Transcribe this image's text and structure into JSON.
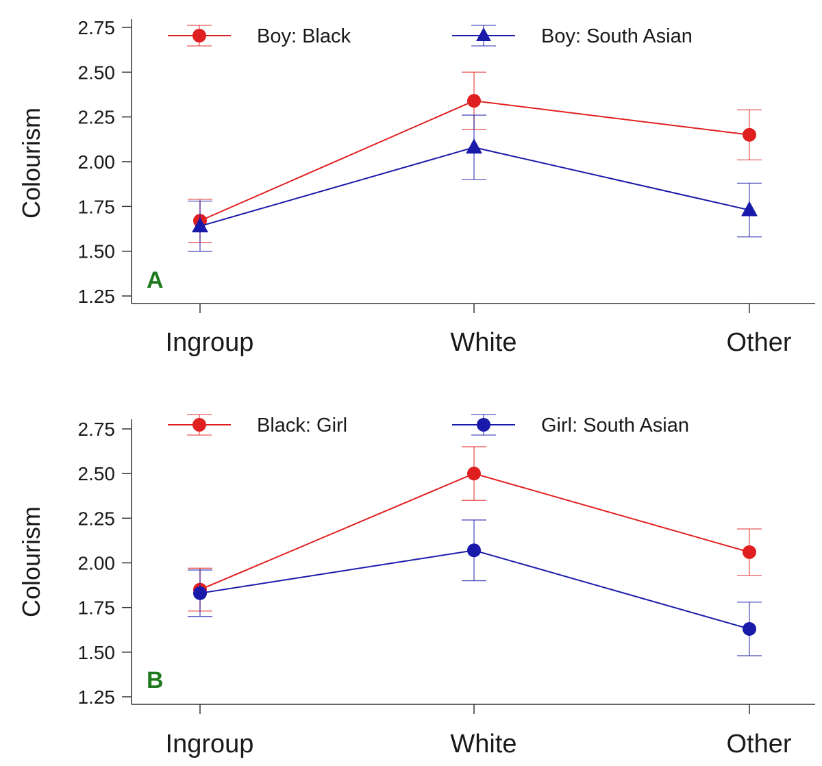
{
  "chart_data": [
    {
      "type": "line",
      "panel_label": "A",
      "panel_label_color": "#1f7a1f",
      "ylabel": "Colourism",
      "ylim": [
        1.2,
        2.78
      ],
      "yticks": [
        "1.25",
        "1.50",
        "1.75",
        "2.00",
        "2.25",
        "2.50",
        "2.75"
      ],
      "categories": [
        "Ingroup",
        "White",
        "Other"
      ],
      "series": [
        {
          "name": "Boy: Black",
          "color": "#e02020",
          "marker": "circle",
          "values": [
            1.67,
            2.34,
            2.15
          ],
          "errors": [
            0.12,
            0.16,
            0.14
          ]
        },
        {
          "name": "Boy: South Asian",
          "color": "#1a1aaa",
          "marker": "triangle",
          "values": [
            1.64,
            2.08,
            1.73
          ],
          "errors": [
            0.14,
            0.18,
            0.15
          ]
        }
      ]
    },
    {
      "type": "line",
      "panel_label": "B",
      "panel_label_color": "#1f7a1f",
      "ylabel": "Colourism",
      "ylim": [
        1.2,
        2.78
      ],
      "yticks": [
        "1.25",
        "1.50",
        "1.75",
        "2.00",
        "2.25",
        "2.50",
        "2.75"
      ],
      "categories": [
        "Ingroup",
        "White",
        "Other"
      ],
      "series": [
        {
          "name": "Black: Girl",
          "color": "#e02020",
          "marker": "circle",
          "values": [
            1.85,
            2.5,
            2.06
          ],
          "errors": [
            0.12,
            0.15,
            0.13
          ]
        },
        {
          "name": "Girl: South Asian",
          "color": "#1a1aaa",
          "marker": "circle",
          "values": [
            1.83,
            2.07,
            1.63
          ],
          "errors": [
            0.13,
            0.17,
            0.15
          ]
        }
      ]
    }
  ]
}
